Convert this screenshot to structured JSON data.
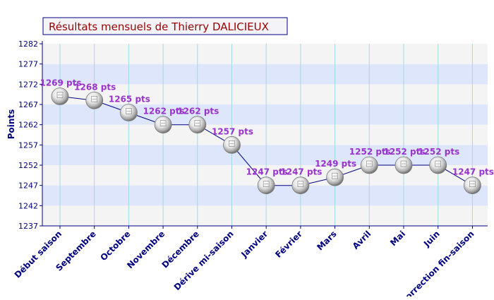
{
  "chart_data": {
    "type": "line",
    "title": "Résultats mensuels de Thierry DALICIEUX",
    "xlabel": "",
    "ylabel": "Points",
    "ylim": [
      1237,
      1282
    ],
    "yticks": [
      1237,
      1242,
      1247,
      1252,
      1257,
      1262,
      1267,
      1272,
      1277,
      1282
    ],
    "categories": [
      "Début saison",
      "Septembre",
      "Octobre",
      "Novembre",
      "Décembre",
      "Dérive mi-saison",
      "Janvier",
      "Février",
      "Mars",
      "Avril",
      "Mai",
      "Juin",
      "Correction fin-saison"
    ],
    "values": [
      1269,
      1268,
      1265,
      1262,
      1262,
      1257,
      1247,
      1247,
      1249,
      1252,
      1252,
      1252,
      1247
    ],
    "labels": [
      "1269 pts",
      "1268 pts",
      "1265 pts",
      "1262 pts",
      "1262 pts",
      "1257 pts",
      "1247 pts",
      "1247 pts",
      "1249 pts",
      "1252 pts",
      "1252 pts",
      "1252 pts",
      "1247 pts"
    ],
    "grid": true,
    "colors": {
      "title": "#990000",
      "label": "#9933cc",
      "axis_text": "#000080",
      "line": "#000080",
      "band_a": "#f4f4f4",
      "band_b": "#dde6fb",
      "gridline": "#a3d8e6"
    }
  }
}
